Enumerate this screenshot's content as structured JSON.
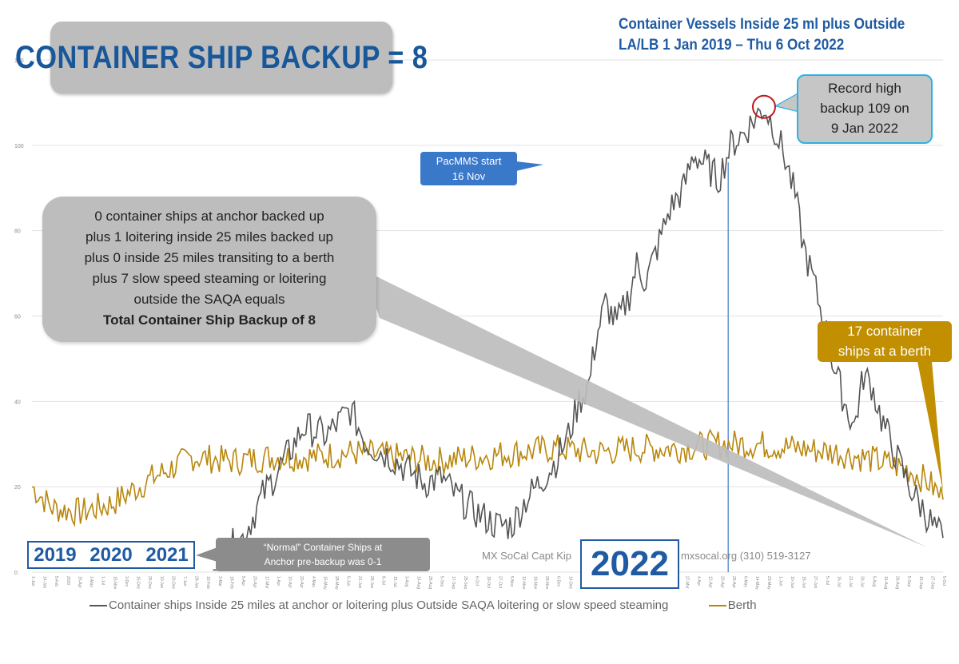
{
  "headline": "CONTAINER SHIP BACKUP = 8",
  "subtitle_lines": [
    "Container Vessels Inside 25 ml plus Outside",
    "LA/LB 1 Jan 2019 – Thu 6 Oct 2022"
  ],
  "summary_lines": [
    "0 container ships at anchor backed up",
    "plus 1 loitering inside 25 miles backed up",
    "plus 0 inside 25 miles transiting to a berth",
    "plus 7 slow speed steaming or loitering",
    "outside the SAQA equals"
  ],
  "summary_bold": "Total Container Ship Backup of 8",
  "record_lines": [
    "Record high",
    "backup 109 on",
    "9 Jan 2022"
  ],
  "pacmms_lines": [
    "PacMMS start",
    "16 Nov"
  ],
  "berth_callout_lines": [
    "17 container",
    "ships at a berth"
  ],
  "normal_lines": [
    "“Normal” Container Ships at",
    "Anchor pre-backup was 0-1"
  ],
  "years": [
    "2019",
    "2020",
    "2021"
  ],
  "year_2022": "2022",
  "credit_left": "MX SoCal Capt Kip",
  "credit_right": "mxsocal.org  (310) 519-3127",
  "legend": {
    "backup_label": "Container ships Inside 25 miles at anchor or loitering plus Outside SAQA loitering or slow speed steaming",
    "berth_label": "Berth"
  },
  "colors": {
    "backup": "#555555",
    "berth": "#b8860b",
    "accent_blue": "#1f5ba3",
    "record_border": "#29b3e6",
    "record_circle": "#c0161c"
  },
  "chart_data": {
    "type": "line",
    "ylim": [
      0,
      120
    ],
    "yticks": [
      0,
      20,
      40,
      60,
      80,
      100,
      120
    ],
    "x_start": "2019-01-01",
    "x_end": "2022-10-06",
    "x_tick_labels": [
      "1-Jan",
      "14-Jan",
      "5-Feb",
      "2020",
      "15-Apr",
      "1-May",
      "1-Jul",
      "15-Nov",
      "3-Dec",
      "15-Dec",
      "25-Dec",
      "10-Jan",
      "20-Dec",
      "7-Jan",
      "28-Jan",
      "15-Feb",
      "3-Mar",
      "18-Feb",
      "5-Apr",
      "20-Apr",
      "17-Mar",
      "1-Apr",
      "10-Apr",
      "20-Apr",
      "4-May",
      "15-May",
      "28-May",
      "5-Jun",
      "21-Jun",
      "29-Jun",
      "8-Jul",
      "15-Jul",
      "3-Aug",
      "14-Aug",
      "25-Aug",
      "5-Sep",
      "17-Sep",
      "25-Sep",
      "6-Oct",
      "18-Oct",
      "27-Oct",
      "5-Nov",
      "12-Nov",
      "19-Nov",
      "28-Nov",
      "6-Dec",
      "14-Dec",
      "21-Dec",
      "2-Jan",
      "11-Jan",
      "24-Jan",
      "30-Jan",
      "14-Feb",
      "27-Feb",
      "7-Mar",
      "19-Mar",
      "27-Mar",
      "4-Apr",
      "12-Apr",
      "20-Apr",
      "29-Apr",
      "6-May",
      "14-May",
      "23-May",
      "1-Jun",
      "10-Jun",
      "18-Jun",
      "27-Jun",
      "5-Jul",
      "15-Jul",
      "21-Jul",
      "30-Jul",
      "5-Aug",
      "16-Aug",
      "26-Aug",
      "5-Sep",
      "15-Sep",
      "27-Sep",
      "5-Oct"
    ],
    "series": [
      {
        "name": "Container ships Inside 25 miles at anchor or loitering plus Outside SAQA loitering or slow speed steaming",
        "color": "#555555",
        "start": "2019-10-01",
        "points": [
          [
            "2019-10-01",
            3
          ],
          [
            "2019-11-15",
            8
          ],
          [
            "2019-12-15",
            18
          ],
          [
            "2020-01-20",
            27
          ],
          [
            "2020-02-15",
            34
          ],
          [
            "2020-03-20",
            32
          ],
          [
            "2020-04-25",
            38
          ],
          [
            "2020-05-20",
            30
          ],
          [
            "2020-06-25",
            27
          ],
          [
            "2020-07-20",
            24
          ],
          [
            "2020-08-15",
            21
          ],
          [
            "2020-09-10",
            22
          ],
          [
            "2020-10-01",
            18
          ],
          [
            "2020-11-01",
            14
          ],
          [
            "2020-12-01",
            11
          ],
          [
            "2020-12-25",
            11
          ],
          [
            "2021-01-15",
            17
          ],
          [
            "2021-02-10",
            22
          ],
          [
            "2021-03-01",
            26
          ],
          [
            "2021-03-20",
            32
          ],
          [
            "2021-04-05",
            40
          ],
          [
            "2021-04-20",
            44
          ],
          [
            "2021-05-01",
            55
          ],
          [
            "2021-05-15",
            63
          ],
          [
            "2021-06-01",
            58
          ],
          [
            "2021-06-20",
            65
          ],
          [
            "2021-07-01",
            72
          ],
          [
            "2021-07-15",
            68
          ],
          [
            "2021-08-01",
            76
          ],
          [
            "2021-08-20",
            85
          ],
          [
            "2021-09-10",
            90
          ],
          [
            "2021-09-25",
            98
          ],
          [
            "2021-10-15",
            95
          ],
          [
            "2021-11-01",
            92
          ],
          [
            "2021-11-20",
            100
          ],
          [
            "2021-12-10",
            103
          ],
          [
            "2022-01-09",
            109
          ],
          [
            "2022-01-25",
            104
          ],
          [
            "2022-02-10",
            97
          ],
          [
            "2022-02-25",
            88
          ],
          [
            "2022-03-10",
            76
          ],
          [
            "2022-03-25",
            68
          ],
          [
            "2022-04-10",
            58
          ],
          [
            "2022-04-25",
            48
          ],
          [
            "2022-05-10",
            40
          ],
          [
            "2022-05-25",
            34
          ],
          [
            "2022-06-08",
            46
          ],
          [
            "2022-06-20",
            44
          ],
          [
            "2022-07-05",
            36
          ],
          [
            "2022-07-20",
            30
          ],
          [
            "2022-08-05",
            24
          ],
          [
            "2022-08-20",
            19
          ],
          [
            "2022-09-05",
            15
          ],
          [
            "2022-09-20",
            11
          ],
          [
            "2022-10-06",
            8
          ]
        ]
      },
      {
        "name": "Berth",
        "color": "#b8860b",
        "start": "2019-01-01",
        "points": [
          [
            "2019-01-01",
            20
          ],
          [
            "2019-02-01",
            15
          ],
          [
            "2019-03-15",
            14
          ],
          [
            "2019-05-01",
            16
          ],
          [
            "2019-07-01",
            22
          ],
          [
            "2019-09-01",
            27
          ],
          [
            "2019-11-01",
            26
          ],
          [
            "2020-01-01",
            27
          ],
          [
            "2020-03-01",
            27
          ],
          [
            "2020-05-01",
            28
          ],
          [
            "2020-07-01",
            27
          ],
          [
            "2020-09-01",
            26
          ],
          [
            "2020-11-01",
            27
          ],
          [
            "2021-01-01",
            28
          ],
          [
            "2021-03-01",
            29
          ],
          [
            "2021-05-01",
            28
          ],
          [
            "2021-07-01",
            29
          ],
          [
            "2021-09-01",
            29
          ],
          [
            "2021-11-01",
            30
          ],
          [
            "2022-01-01",
            30
          ],
          [
            "2022-03-01",
            29
          ],
          [
            "2022-05-01",
            28
          ],
          [
            "2022-07-01",
            26
          ],
          [
            "2022-08-15",
            24
          ],
          [
            "2022-09-15",
            21
          ],
          [
            "2022-10-06",
            17
          ]
        ]
      }
    ],
    "annotations": [
      {
        "date": "2021-11-16",
        "label": "PacMMS start 16 Nov"
      },
      {
        "date": "2022-01-09",
        "value": 109,
        "label": "Record high backup 109 on 9 Jan 2022"
      }
    ],
    "grid": true,
    "legend_position": "bottom"
  }
}
